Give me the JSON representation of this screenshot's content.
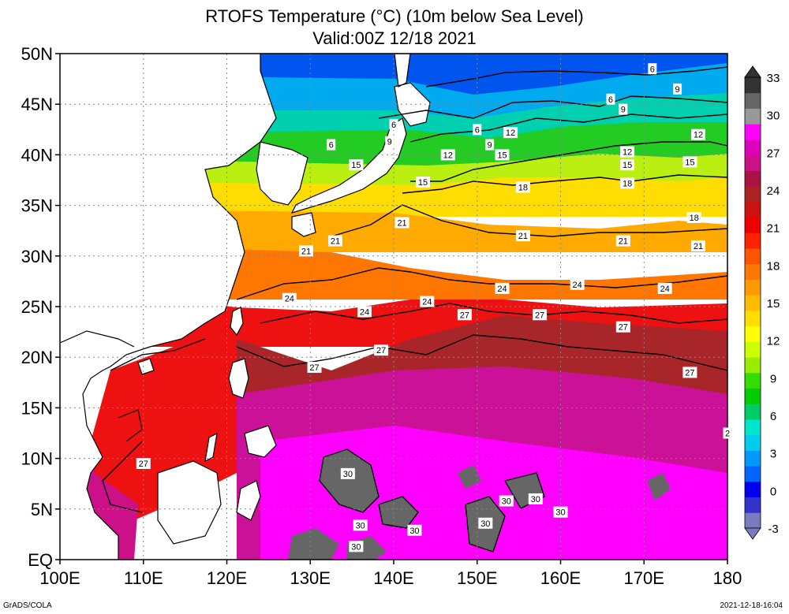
{
  "title": {
    "line1": "RTOFS Temperature (°C) (10m below Sea Level)",
    "line2": "Valid:00Z 12/18 2021"
  },
  "axes": {
    "lat_labels": [
      "EQ",
      "5N",
      "10N",
      "15N",
      "20N",
      "25N",
      "30N",
      "35N",
      "40N",
      "45N",
      "50N"
    ],
    "lat_values": [
      0,
      5,
      10,
      15,
      20,
      25,
      30,
      35,
      40,
      45,
      50
    ],
    "lon_labels": [
      "100E",
      "110E",
      "120E",
      "130E",
      "140E",
      "150E",
      "160E",
      "170E",
      "180"
    ],
    "lon_values": [
      100,
      110,
      120,
      130,
      140,
      150,
      160,
      170,
      180
    ],
    "lon_range": [
      100,
      180
    ],
    "lat_range": [
      0,
      50
    ],
    "grid": true
  },
  "colorbar": {
    "labels": [
      "-3",
      "0",
      "3",
      "6",
      "9",
      "12",
      "15",
      "18",
      "21",
      "24",
      "27",
      "30",
      "33"
    ],
    "colors": [
      "#7a7abf",
      "#3333cc",
      "#0000ee",
      "#0066ff",
      "#0099ff",
      "#00ccee",
      "#00e6cc",
      "#00cc66",
      "#00cc00",
      "#33dd00",
      "#99ee00",
      "#ccff00",
      "#ffff00",
      "#ffdd00",
      "#ffbb00",
      "#ff9900",
      "#ff7700",
      "#ff5500",
      "#ff2200",
      "#ee0000",
      "#cc1111",
      "#aa2222",
      "#aa1144",
      "#cc1188",
      "#dd00bb",
      "#ff00ff",
      "#999999",
      "#666666",
      "#333333"
    ]
  },
  "contour_labels": [
    {
      "text": "6",
      "lon": 171.0,
      "lat": 48.5
    },
    {
      "text": "9",
      "lon": 174.0,
      "lat": 46.5
    },
    {
      "text": "6",
      "lon": 166.0,
      "lat": 45.5
    },
    {
      "text": "9",
      "lon": 167.5,
      "lat": 44.5
    },
    {
      "text": "6",
      "lon": 140.0,
      "lat": 43.0
    },
    {
      "text": "6",
      "lon": 150.0,
      "lat": 42.5
    },
    {
      "text": "12",
      "lon": 154.0,
      "lat": 42.2
    },
    {
      "text": "12",
      "lon": 176.5,
      "lat": 42.0
    },
    {
      "text": "9",
      "lon": 139.5,
      "lat": 41.3
    },
    {
      "text": "9",
      "lon": 151.5,
      "lat": 41.0
    },
    {
      "text": "6",
      "lon": 132.5,
      "lat": 41.0
    },
    {
      "text": "12",
      "lon": 168.0,
      "lat": 40.3
    },
    {
      "text": "12",
      "lon": 146.5,
      "lat": 40.0
    },
    {
      "text": "15",
      "lon": 153.0,
      "lat": 40.0
    },
    {
      "text": "15",
      "lon": 135.5,
      "lat": 39.0
    },
    {
      "text": "15",
      "lon": 168.0,
      "lat": 39.0
    },
    {
      "text": "15",
      "lon": 175.5,
      "lat": 39.3
    },
    {
      "text": "15",
      "lon": 143.5,
      "lat": 37.3
    },
    {
      "text": "18",
      "lon": 155.5,
      "lat": 36.8
    },
    {
      "text": "18",
      "lon": 168.0,
      "lat": 37.2
    },
    {
      "text": "18",
      "lon": 176.0,
      "lat": 33.8
    },
    {
      "text": "21",
      "lon": 141.0,
      "lat": 33.3
    },
    {
      "text": "21",
      "lon": 155.5,
      "lat": 32.0
    },
    {
      "text": "21",
      "lon": 133.0,
      "lat": 31.5
    },
    {
      "text": "21",
      "lon": 167.5,
      "lat": 31.5
    },
    {
      "text": "21",
      "lon": 176.5,
      "lat": 31.0
    },
    {
      "text": "21",
      "lon": 129.5,
      "lat": 30.5
    },
    {
      "text": "24",
      "lon": 153.0,
      "lat": 26.8
    },
    {
      "text": "24",
      "lon": 162.0,
      "lat": 27.2
    },
    {
      "text": "24",
      "lon": 172.5,
      "lat": 26.8
    },
    {
      "text": "24",
      "lon": 127.5,
      "lat": 25.8
    },
    {
      "text": "24",
      "lon": 144.0,
      "lat": 25.5
    },
    {
      "text": "24",
      "lon": 136.5,
      "lat": 24.5
    },
    {
      "text": "27",
      "lon": 148.5,
      "lat": 24.2
    },
    {
      "text": "27",
      "lon": 157.5,
      "lat": 24.2
    },
    {
      "text": "27",
      "lon": 167.5,
      "lat": 23.0
    },
    {
      "text": "27",
      "lon": 138.5,
      "lat": 20.7
    },
    {
      "text": "27",
      "lon": 130.5,
      "lat": 19.0
    },
    {
      "text": "27",
      "lon": 175.5,
      "lat": 18.5
    },
    {
      "text": "27",
      "lon": 110.0,
      "lat": 9.5
    },
    {
      "text": "2",
      "lon": 180.0,
      "lat": 12.5
    },
    {
      "text": "30",
      "lon": 134.5,
      "lat": 8.5
    },
    {
      "text": "30",
      "lon": 157.0,
      "lat": 6.0
    },
    {
      "text": "30",
      "lon": 153.5,
      "lat": 5.8
    },
    {
      "text": "30",
      "lon": 160.0,
      "lat": 4.7
    },
    {
      "text": "30",
      "lon": 151.0,
      "lat": 3.6
    },
    {
      "text": "30",
      "lon": 136.0,
      "lat": 3.4
    },
    {
      "text": "30",
      "lon": 142.5,
      "lat": 2.9
    },
    {
      "text": "30",
      "lon": 135.5,
      "lat": 1.3
    }
  ],
  "footer": {
    "credit": "GrADS/COLA",
    "timestamp": "2021-12-18-16:04"
  }
}
